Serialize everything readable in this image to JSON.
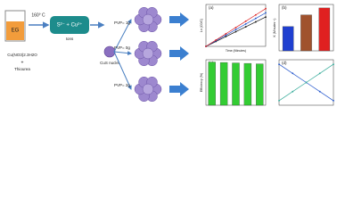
{
  "diagram": {
    "solvent": "EG",
    "temperature": "160° C",
    "reagent_1": "Cu(NO3)2.3H2O",
    "plus": "+",
    "reagent_2": "Thiourea",
    "ions_formula": "S²⁻ + Cu²⁺",
    "ions_label": "Ions",
    "nuclei_label": "CuS nuclei",
    "branches": [
      "PVP= 1g",
      "PVP= 0g",
      "PVP= 2g"
    ]
  },
  "chart_data": [
    {
      "type": "line",
      "title": "(a)",
      "ylabel": "Ln (C0/C)",
      "xlabel": "Time (Minutes)",
      "x": [
        0,
        10,
        20,
        30,
        40,
        50,
        60
      ],
      "xlim": [
        0,
        60
      ],
      "ylim": [
        0,
        3
      ],
      "series": [
        {
          "color": "#111111",
          "values": [
            0,
            0.35,
            0.7,
            1.05,
            1.4,
            1.75,
            2.1
          ]
        },
        {
          "color": "#2255cc",
          "values": [
            0,
            0.4,
            0.8,
            1.2,
            1.6,
            2.0,
            2.4
          ]
        },
        {
          "color": "#dd2222",
          "values": [
            0,
            0.45,
            0.9,
            1.35,
            1.8,
            2.25,
            2.7
          ]
        }
      ]
    },
    {
      "type": "bar",
      "title": "(b)",
      "ylabel": "K (Minutes⁻¹)",
      "categories": [
        null,
        null,
        null
      ],
      "ylim": [
        0,
        0.04
      ],
      "values": [
        0.021,
        0.031,
        0.037
      ],
      "colors": [
        "#1f3fd0",
        "#a0522d",
        "#e02020"
      ]
    },
    {
      "type": "bar",
      "title": "(c)",
      "ylabel": "Efficiency (%)",
      "categories": [
        null,
        null,
        null,
        null,
        null
      ],
      "ylim": [
        0,
        100
      ],
      "values": [
        95,
        94,
        93,
        92,
        91
      ],
      "colors": [
        "#33cc33",
        "#33cc33",
        "#33cc33",
        "#33cc33",
        "#33cc33"
      ]
    },
    {
      "type": "line",
      "title": "(d)",
      "x": [
        0,
        1,
        2,
        3,
        4
      ],
      "xlim": [
        0,
        4
      ],
      "ylim": [
        0,
        100
      ],
      "series": [
        {
          "color": "#2255cc",
          "values": [
            90,
            70,
            50,
            30,
            10
          ]
        },
        {
          "color": "#33aa99",
          "values": [
            10,
            30,
            50,
            70,
            90
          ]
        }
      ]
    }
  ]
}
